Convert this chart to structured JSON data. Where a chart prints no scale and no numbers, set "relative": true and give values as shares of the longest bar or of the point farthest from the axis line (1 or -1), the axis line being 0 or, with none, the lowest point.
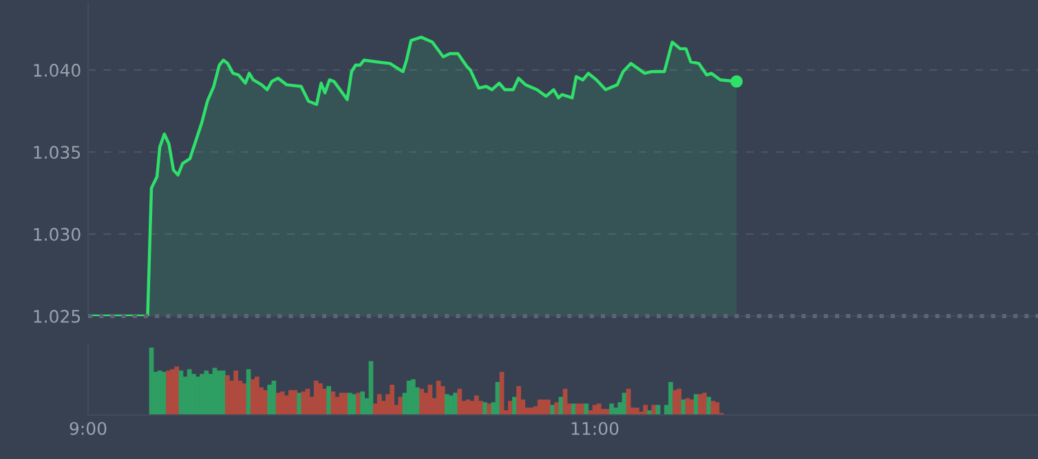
{
  "chart_data": [
    {
      "type": "area",
      "tick_labels": "y",
      "grid": "y",
      "marker": "none",
      "line_style": "solid",
      "xlim": [
        9,
        12.75
      ],
      "ylim": [
        1.025,
        1.0441
      ],
      "yticks": [
        1.025,
        {
          "value": 1.03,
          "label": "1.030"
        },
        1.035,
        {
          "value": 1.04,
          "label": "1.040"
        }
      ],
      "ref_lines": [
        {
          "axis": "y",
          "value": 1.025,
          "color": "#5c6573",
          "line_style": "dotted"
        }
      ],
      "series": [
        {
          "color": "#2fe06a",
          "x": [
            9.005,
            9.235,
            9.25,
            9.272,
            9.283,
            9.301,
            9.319,
            9.337,
            9.355,
            9.373,
            9.402,
            9.449,
            9.471,
            9.496,
            9.518,
            9.534,
            9.551,
            9.572,
            9.594,
            9.621,
            9.636,
            9.652,
            9.685,
            9.707,
            9.725,
            9.75,
            9.784,
            9.841,
            9.87,
            9.902,
            9.92,
            9.935,
            9.953,
            9.971,
            10.023,
            10.04,
            10.056,
            10.074,
            10.089,
            10.138,
            10.192,
            10.243,
            10.257,
            10.275,
            10.315,
            10.359,
            10.402,
            10.428,
            10.46,
            10.496,
            10.509,
            10.542,
            10.572,
            10.594,
            10.623,
            10.645,
            10.678,
            10.699,
            10.727,
            10.772,
            10.808,
            10.838,
            10.857,
            10.871,
            10.911,
            10.927,
            10.953,
            10.975,
            11.007,
            11.043,
            11.089,
            11.112,
            11.143,
            11.197,
            11.224,
            11.275,
            11.306,
            11.337,
            11.36,
            11.379,
            11.411,
            11.442,
            11.46,
            11.496,
            11.56
          ],
          "values": [
            1.025,
            1.025,
            1.0328,
            1.0335,
            1.0353,
            1.0361,
            1.0355,
            1.0339,
            1.0336,
            1.0343,
            1.0346,
            1.0368,
            1.0381,
            1.039,
            1.0403,
            1.0406,
            1.0404,
            1.0398,
            1.0397,
            1.0392,
            1.0398,
            1.0394,
            1.0391,
            1.0388,
            1.0393,
            1.0395,
            1.0391,
            1.039,
            1.0381,
            1.0379,
            1.0392,
            1.0386,
            1.0394,
            1.0393,
            1.0382,
            1.0399,
            1.0403,
            1.0403,
            1.0406,
            1.0405,
            1.0404,
            1.0399,
            1.0406,
            1.0418,
            1.042,
            1.0417,
            1.0408,
            1.041,
            1.041,
            1.0402,
            1.04,
            1.0389,
            1.039,
            1.0388,
            1.0392,
            1.0388,
            1.0388,
            1.0395,
            1.0391,
            1.0388,
            1.0384,
            1.0388,
            1.0383,
            1.0385,
            1.0383,
            1.0396,
            1.0394,
            1.0398,
            1.0394,
            1.0388,
            1.0391,
            1.0399,
            1.0404,
            1.0398,
            1.0399,
            1.0399,
            1.0417,
            1.0413,
            1.0413,
            1.0405,
            1.0404,
            1.0397,
            1.0398,
            1.0394,
            1.0393
          ]
        }
      ]
    },
    {
      "type": "bar",
      "relative": true,
      "tick_labels": "x",
      "xlim": [
        9,
        12.75
      ],
      "xticks": [
        {
          "value": 9,
          "label": "9:00"
        },
        {
          "value": 11,
          "label": "11:00"
        }
      ],
      "x": [
        9.25,
        9.2667,
        9.2833,
        9.3,
        9.3167,
        9.3333,
        9.35,
        9.3667,
        9.3833,
        9.4,
        9.4167,
        9.4333,
        9.45,
        9.4667,
        9.4833,
        9.5,
        9.5167,
        9.5333,
        9.55,
        9.5667,
        9.5833,
        9.6,
        9.6167,
        9.6333,
        9.65,
        9.6667,
        9.6833,
        9.7,
        9.7167,
        9.7333,
        9.75,
        9.7667,
        9.7833,
        9.8,
        9.8167,
        9.8333,
        9.85,
        9.8667,
        9.8833,
        9.9,
        9.9167,
        9.9333,
        9.95,
        9.9667,
        9.9833,
        10,
        10.0167,
        10.0333,
        10.05,
        10.0667,
        10.0833,
        10.1,
        10.1167,
        10.1333,
        10.15,
        10.1667,
        10.1833,
        10.2,
        10.2167,
        10.2333,
        10.25,
        10.2667,
        10.2833,
        10.3,
        10.3167,
        10.3333,
        10.35,
        10.3667,
        10.3833,
        10.4,
        10.4167,
        10.4333,
        10.45,
        10.4667,
        10.4833,
        10.5,
        10.5167,
        10.5333,
        10.55,
        10.5667,
        10.5833,
        10.6,
        10.6167,
        10.6333,
        10.65,
        10.6667,
        10.6833,
        10.7,
        10.7167,
        10.7333,
        10.75,
        10.7667,
        10.7833,
        10.8,
        10.8167,
        10.8333,
        10.85,
        10.8667,
        10.8833,
        10.9,
        10.9167,
        10.9333,
        10.95,
        10.9667,
        10.9833,
        11,
        11.0167,
        11.0333,
        11.05,
        11.0667,
        11.0833,
        11.1,
        11.1167,
        11.1333,
        11.15,
        11.1667,
        11.1833,
        11.2,
        11.2167,
        11.2333,
        11.25,
        11.2667,
        11.2833,
        11.3,
        11.3167,
        11.3333,
        11.35,
        11.3667,
        11.3833,
        11.4,
        11.4167,
        11.4333,
        11.45,
        11.4667,
        11.4833,
        11.5
      ],
      "values": [
        1.0,
        0.64,
        0.66,
        0.64,
        0.66,
        0.68,
        0.72,
        0.66,
        0.57,
        0.68,
        0.61,
        0.57,
        0.61,
        0.66,
        0.61,
        0.7,
        0.66,
        0.66,
        0.59,
        0.51,
        0.66,
        0.51,
        0.47,
        0.68,
        0.53,
        0.57,
        0.41,
        0.37,
        0.45,
        0.51,
        0.33,
        0.35,
        0.29,
        0.37,
        0.37,
        0.33,
        0.35,
        0.39,
        0.27,
        0.51,
        0.47,
        0.39,
        0.43,
        0.35,
        0.27,
        0.33,
        0.33,
        0.33,
        0.31,
        0.33,
        0.35,
        0.25,
        0.8,
        0.17,
        0.31,
        0.21,
        0.31,
        0.45,
        0.15,
        0.27,
        0.33,
        0.51,
        0.53,
        0.41,
        0.39,
        0.33,
        0.45,
        0.25,
        0.51,
        0.43,
        0.31,
        0.29,
        0.33,
        0.39,
        0.21,
        0.23,
        0.21,
        0.29,
        0.21,
        0.19,
        0.17,
        0.19,
        0.49,
        0.64,
        0.07,
        0.21,
        0.27,
        0.43,
        0.23,
        0.11,
        0.11,
        0.13,
        0.23,
        0.23,
        0.23,
        0.15,
        0.19,
        0.27,
        0.39,
        0.17,
        0.17,
        0.17,
        0.17,
        0.17,
        0.07,
        0.15,
        0.17,
        0.09,
        0.09,
        0.17,
        0.11,
        0.19,
        0.33,
        0.39,
        0.11,
        0.11,
        0.05,
        0.15,
        0.07,
        0.15,
        0.15,
        null,
        0.15,
        0.49,
        0.37,
        0.39,
        0.23,
        0.25,
        0.23,
        0.31,
        0.31,
        0.33,
        0.27,
        0.21,
        0.19,
        0.03
      ],
      "colors": [
        "#2e9e62",
        "#2e9e62",
        "#2e9e62",
        "#2e9e62",
        "#b04a3f",
        "#b04a3f",
        "#b04a3f",
        "#2e9e62",
        "#2e9e62",
        "#2e9e62",
        "#2e9e62",
        "#2e9e62",
        "#2e9e62",
        "#2e9e62",
        "#2e9e62",
        "#2e9e62",
        "#2e9e62",
        "#2e9e62",
        "#b04a3f",
        "#b04a3f",
        "#b04a3f",
        "#b04a3f",
        "#b04a3f",
        "#2e9e62",
        "#b04a3f",
        "#b04a3f",
        "#b04a3f",
        "#b04a3f",
        "#2e9e62",
        "#2e9e62",
        "#b04a3f",
        "#b04a3f",
        "#b04a3f",
        "#b04a3f",
        "#b04a3f",
        "#2e9e62",
        "#b04a3f",
        "#b04a3f",
        "#b04a3f",
        "#b04a3f",
        "#b04a3f",
        "#b04a3f",
        "#2e9e62",
        "#b04a3f",
        "#b04a3f",
        "#b04a3f",
        "#b04a3f",
        "#2e9e62",
        "#2e9e62",
        "#b04a3f",
        "#2e9e62",
        "#2e9e62",
        "#2e9e62",
        "#b04a3f",
        "#b04a3f",
        "#b04a3f",
        "#b04a3f",
        "#b04a3f",
        "#b04a3f",
        "#b04a3f",
        "#2e9e62",
        "#2e9e62",
        "#2e9e62",
        "#2e9e62",
        "#b04a3f",
        "#b04a3f",
        "#b04a3f",
        "#b04a3f",
        "#b04a3f",
        "#b04a3f",
        "#2e9e62",
        "#2e9e62",
        "#2e9e62",
        "#b04a3f",
        "#b04a3f",
        "#b04a3f",
        "#b04a3f",
        "#b04a3f",
        "#b04a3f",
        "#2e9e62",
        "#b04a3f",
        "#2e9e62",
        "#2e9e62",
        "#b04a3f",
        "#b04a3f",
        "#b04a3f",
        "#2e9e62",
        "#b04a3f",
        "#b04a3f",
        "#b04a3f",
        "#b04a3f",
        "#b04a3f",
        "#b04a3f",
        "#b04a3f",
        "#b04a3f",
        "#2e9e62",
        "#b04a3f",
        "#2e9e62",
        "#b04a3f",
        "#b04a3f",
        "#2e9e62",
        "#b04a3f",
        "#b04a3f",
        "#2e9e62",
        "#b04a3f",
        "#b04a3f",
        "#b04a3f",
        "#b04a3f",
        "#b04a3f",
        "#2e9e62",
        "#2e9e62",
        "#2e9e62",
        "#2e9e62",
        "#b04a3f",
        "#b04a3f",
        "#b04a3f",
        "#b04a3f",
        "#b04a3f",
        "#2e9e62",
        "#b04a3f",
        "#2e9e62",
        "#2e9e62",
        "#2e9e62",
        "#2e9e62",
        "#b04a3f",
        "#b04a3f",
        "#2e9e62",
        "#b04a3f",
        "#b04a3f",
        "#2e9e62",
        "#b04a3f",
        "#b04a3f",
        "#2e9e62",
        "#b04a3f",
        "#b04a3f",
        "#b04a3f"
      ]
    }
  ]
}
